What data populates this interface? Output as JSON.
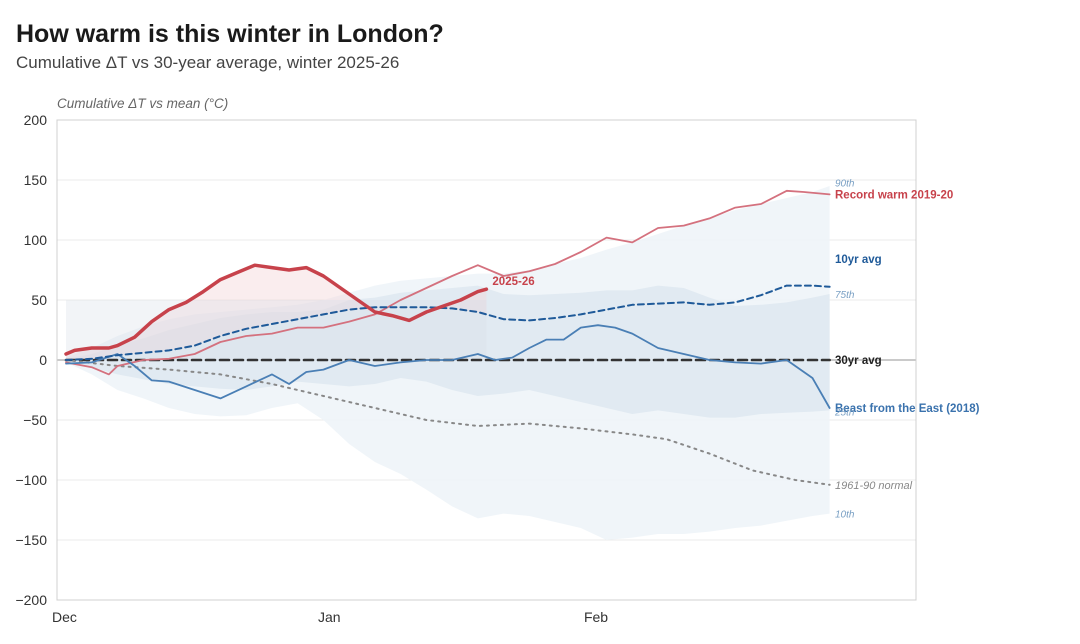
{
  "header": {
    "title": "How warm is this winter in London?",
    "subtitle": "Cumulative ΔT vs 30-year average, winter 2025-26"
  },
  "chart_data": {
    "type": "line",
    "title": "How warm is this winter in London?",
    "subtitle": "Cumulative ΔT vs 30-year average, winter 2025-26",
    "xlabel": "",
    "ylabel": "Cumulative ΔT vs mean (°C)",
    "ylim": [
      -200,
      200
    ],
    "yticks": [
      200,
      150,
      100,
      50,
      0,
      -50,
      -100,
      -150,
      -200
    ],
    "ytick_labels": [
      "200",
      "150",
      "100",
      "50",
      "0",
      "−50",
      "−100",
      "−150",
      "−200"
    ],
    "xlim_days": [
      -1,
      99
    ],
    "xticks": [
      {
        "day": 0,
        "label": "Dec"
      },
      {
        "day": 31,
        "label": "Jan"
      },
      {
        "day": 62,
        "label": "Feb"
      }
    ],
    "grid": true,
    "x_unit": "days since 1 Dec",
    "bands": [
      {
        "name": "10th-90th percentile",
        "days": [
          0,
          3,
          6,
          9,
          12,
          15,
          18,
          21,
          24,
          27,
          30,
          33,
          36,
          39,
          42,
          45,
          48,
          51,
          54,
          57,
          60,
          63,
          66,
          69,
          72,
          75,
          78,
          81,
          84,
          87,
          89
        ],
        "upper": [
          2,
          10,
          20,
          28,
          34,
          38,
          40,
          42,
          44,
          46,
          50,
          56,
          62,
          66,
          68,
          70,
          72,
          72,
          75,
          80,
          85,
          92,
          98,
          105,
          112,
          118,
          125,
          130,
          135,
          140,
          145
        ],
        "lower": [
          -2,
          -12,
          -25,
          -32,
          -40,
          -45,
          -47,
          -46,
          -40,
          -36,
          -50,
          -70,
          -85,
          -95,
          -108,
          -122,
          -132,
          -128,
          -130,
          -135,
          -140,
          -150,
          -148,
          -145,
          -145,
          -143,
          -140,
          -138,
          -134,
          -130,
          -128
        ]
      },
      {
        "name": "25th-75th percentile",
        "days": [
          0,
          3,
          6,
          9,
          12,
          15,
          18,
          21,
          24,
          27,
          30,
          33,
          36,
          39,
          42,
          45,
          48,
          51,
          54,
          57,
          60,
          63,
          66,
          69,
          72,
          75,
          78,
          81,
          84,
          87,
          89
        ],
        "upper": [
          1,
          5,
          12,
          18,
          25,
          30,
          35,
          38,
          40,
          40,
          42,
          50,
          52,
          56,
          58,
          60,
          62,
          55,
          54,
          55,
          56,
          58,
          58,
          62,
          60,
          52,
          45,
          46,
          48,
          52,
          55
        ],
        "lower": [
          -1,
          -6,
          -12,
          -16,
          -20,
          -22,
          -24,
          -25,
          -22,
          -18,
          -20,
          -22,
          -20,
          -15,
          -18,
          -25,
          -30,
          -28,
          -25,
          -30,
          -35,
          -40,
          -45,
          -42,
          -45,
          -48,
          -48,
          -45,
          -44,
          -43,
          -42
        ]
      }
    ],
    "series": [
      {
        "name": "2025-26",
        "label": "2025-26",
        "color": "#c7424b",
        "style": "solid-thick",
        "days": [
          0,
          1,
          3,
          5,
          6,
          8,
          10,
          12,
          14,
          16,
          18,
          20,
          22,
          24,
          26,
          28,
          30,
          32,
          34,
          36,
          38,
          40,
          42,
          44,
          46,
          48,
          49
        ],
        "values": [
          5,
          8,
          10,
          10,
          12,
          19,
          32,
          42,
          48,
          57,
          67,
          73,
          79,
          77,
          75,
          77,
          70,
          60,
          50,
          40,
          37,
          33,
          40,
          45,
          50,
          57,
          59
        ]
      },
      {
        "name": "Record warm 2019-20",
        "label": "Record warm 2019-20",
        "color": "#d4717e",
        "style": "solid",
        "days": [
          0,
          3,
          5,
          6,
          9,
          12,
          15,
          18,
          21,
          24,
          27,
          30,
          33,
          36,
          39,
          42,
          45,
          48,
          51,
          54,
          57,
          60,
          63,
          66,
          69,
          72,
          75,
          78,
          81,
          84,
          86,
          89
        ],
        "values": [
          -2,
          -6,
          -12,
          -5,
          0,
          1,
          5,
          15,
          20,
          22,
          27,
          27,
          32,
          38,
          50,
          60,
          70,
          79,
          70,
          74,
          80,
          90,
          102,
          98,
          110,
          112,
          118,
          127,
          130,
          141,
          140,
          138
        ]
      },
      {
        "name": "10yr avg",
        "label": "10yr avg",
        "color": "#1f5a99",
        "style": "dashed",
        "days": [
          0,
          3,
          6,
          9,
          12,
          15,
          18,
          21,
          24,
          27,
          30,
          33,
          36,
          39,
          42,
          45,
          48,
          51,
          54,
          57,
          60,
          63,
          66,
          69,
          72,
          75,
          78,
          81,
          84,
          87,
          89
        ],
        "values": [
          0,
          1,
          4,
          6,
          8,
          12,
          20,
          26,
          30,
          34,
          38,
          42,
          44,
          44,
          44,
          43,
          40,
          34,
          33,
          35,
          38,
          42,
          46,
          47,
          48,
          46,
          48,
          54,
          62,
          62,
          61
        ]
      },
      {
        "name": "30yr avg",
        "label": "30yr avg",
        "color": "#333333",
        "style": "dashed-thick",
        "days": [
          0,
          89
        ],
        "values": [
          0,
          0
        ]
      },
      {
        "name": "Beast from the East (2018)",
        "label": "Beast from the East (2018)",
        "color": "#4a7fb5",
        "style": "solid",
        "days": [
          0,
          3,
          6,
          8,
          10,
          12,
          15,
          18,
          21,
          24,
          26,
          28,
          30,
          33,
          36,
          39,
          42,
          45,
          48,
          50,
          52,
          54,
          56,
          58,
          60,
          62,
          64,
          66,
          69,
          72,
          75,
          78,
          81,
          84,
          87,
          89
        ],
        "values": [
          -3,
          -2,
          5,
          -5,
          -17,
          -18,
          -25,
          -32,
          -22,
          -12,
          -20,
          -10,
          -8,
          0,
          -5,
          -2,
          0,
          0,
          5,
          0,
          2,
          10,
          17,
          17,
          27,
          29,
          27,
          22,
          10,
          5,
          0,
          -2,
          -3,
          0,
          -15,
          -40
        ]
      },
      {
        "name": "1961-90 normal",
        "label": "1961-90 normal",
        "color": "#888888",
        "style": "dotted",
        "days": [
          0,
          6,
          12,
          18,
          24,
          30,
          36,
          42,
          48,
          54,
          60,
          66,
          70,
          75,
          80,
          85,
          89
        ],
        "values": [
          0,
          -5,
          -8,
          -12,
          -20,
          -30,
          -40,
          -50,
          -55,
          -53,
          -57,
          -62,
          -66,
          -78,
          -92,
          -100,
          -104
        ]
      }
    ],
    "annotations": [
      {
        "text": "90th",
        "at_value": 148
      },
      {
        "text": "75th",
        "at_value": 55
      },
      {
        "text": "25th",
        "at_value": -43
      },
      {
        "text": "10th",
        "at_value": -128
      }
    ]
  }
}
